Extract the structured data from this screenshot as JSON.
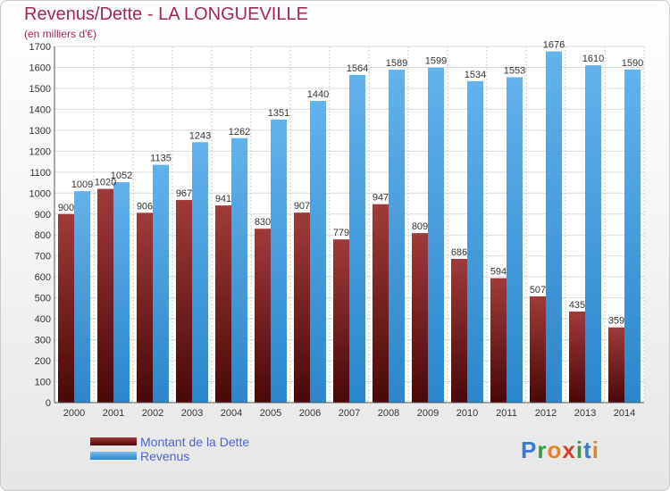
{
  "header": {
    "title": "Revenus/Dette - LA LONGUEVILLE",
    "subtitle": "(en milliers d'€)"
  },
  "legend": {
    "debt_label": "Montant de la Dette",
    "revenue_label": "Revenus"
  },
  "logo": {
    "text": "Proxiti"
  },
  "colors": {
    "debt_top": "#a03a3a",
    "debt_bottom": "#4a0808",
    "revenue_top": "#7cbcec",
    "revenue_bottom": "#2a86cc",
    "title": "#a1245a",
    "legend_text": "#4a62d8"
  },
  "chart_data": {
    "type": "bar",
    "title": "Revenus/Dette - LA LONGUEVILLE",
    "ylabel": "(en milliers d'€)",
    "ylim": [
      0,
      1700
    ],
    "yticks": [
      0,
      100,
      200,
      300,
      400,
      500,
      600,
      700,
      800,
      900,
      1000,
      1100,
      1200,
      1300,
      1400,
      1500,
      1600,
      1700
    ],
    "grid": true,
    "legend_position": "bottom-left",
    "categories": [
      "2000",
      "2001",
      "2002",
      "2003",
      "2004",
      "2005",
      "2006",
      "2007",
      "2008",
      "2009",
      "2010",
      "2011",
      "2012",
      "2013",
      "2014"
    ],
    "series": [
      {
        "name": "Montant de la Dette",
        "values": [
          900,
          1020,
          906,
          967,
          941,
          830,
          907,
          779,
          947,
          809,
          686,
          594,
          507,
          435,
          359
        ]
      },
      {
        "name": "Revenus",
        "values": [
          1009,
          1052,
          1135,
          1243,
          1262,
          1351,
          1440,
          1564,
          1589,
          1599,
          1534,
          1553,
          1676,
          1610,
          1590
        ]
      }
    ]
  }
}
